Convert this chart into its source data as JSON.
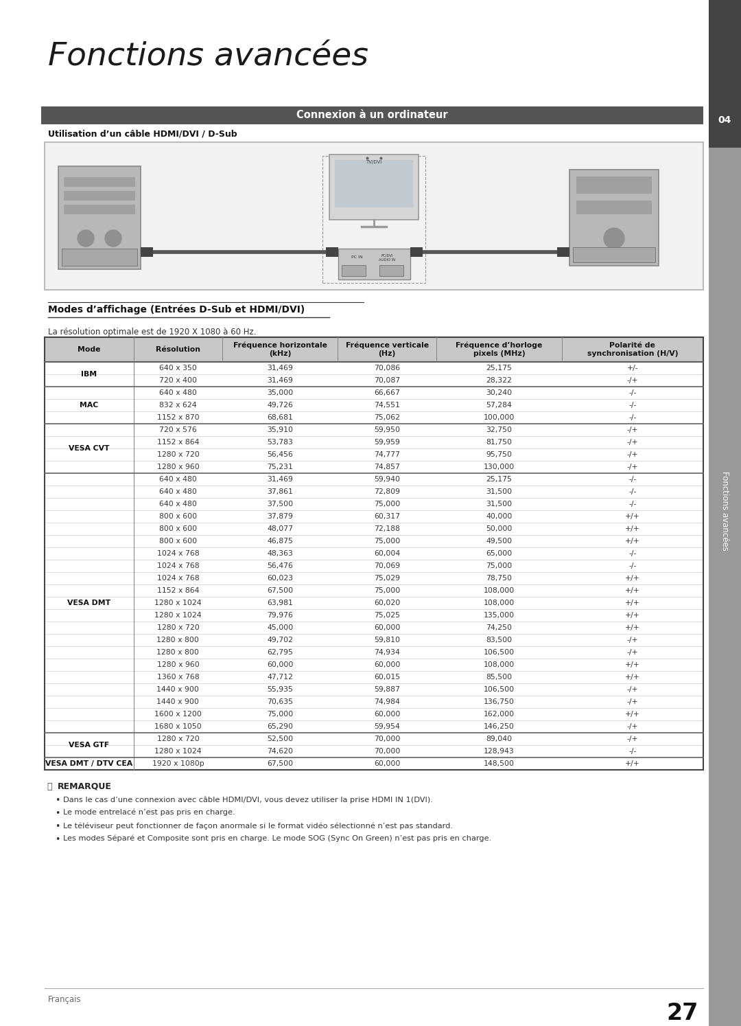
{
  "page_title": "Fonctions avancées",
  "section_header": "Connexion à un ordinateur",
  "subsection_title": "Utilisation d’un câble HDMI/DVI / D-Sub",
  "table_title": "Modes d’affichage (Entrées D-Sub et HDMI/DVI)",
  "table_subtitle": "La résolution optimale est de 1920 X 1080 à 60 Hz.",
  "col_headers": [
    "Mode",
    "Résolution",
    "Fréquence horizontale\n(kHz)",
    "Fréquence verticale\n(Hz)",
    "Fréquence d’horloge\npixels (MHz)",
    "Polarité de\nsynchronisation (H/V)"
  ],
  "table_data": [
    [
      "IBM",
      "640 x 350",
      "31,469",
      "70,086",
      "25,175",
      "+/-"
    ],
    [
      "IBM",
      "720 x 400",
      "31,469",
      "70,087",
      "28,322",
      "-/+"
    ],
    [
      "MAC",
      "640 x 480",
      "35,000",
      "66,667",
      "30,240",
      "-/-"
    ],
    [
      "MAC",
      "832 x 624",
      "49,726",
      "74,551",
      "57,284",
      "-/-"
    ],
    [
      "MAC",
      "1152 x 870",
      "68,681",
      "75,062",
      "100,000",
      "-/-"
    ],
    [
      "VESA CVT",
      "720 x 576",
      "35,910",
      "59,950",
      "32,750",
      "-/+"
    ],
    [
      "VESA CVT",
      "1152 x 864",
      "53,783",
      "59,959",
      "81,750",
      "-/+"
    ],
    [
      "VESA CVT",
      "1280 x 720",
      "56,456",
      "74,777",
      "95,750",
      "-/+"
    ],
    [
      "VESA CVT",
      "1280 x 960",
      "75,231",
      "74,857",
      "130,000",
      "-/+"
    ],
    [
      "VESA DMT",
      "640 x 480",
      "31,469",
      "59,940",
      "25,175",
      "-/-"
    ],
    [
      "VESA DMT",
      "640 x 480",
      "37,861",
      "72,809",
      "31,500",
      "-/-"
    ],
    [
      "VESA DMT",
      "640 x 480",
      "37,500",
      "75,000",
      "31,500",
      "-/-"
    ],
    [
      "VESA DMT",
      "800 x 600",
      "37,879",
      "60,317",
      "40,000",
      "+/+"
    ],
    [
      "VESA DMT",
      "800 x 600",
      "48,077",
      "72,188",
      "50,000",
      "+/+"
    ],
    [
      "VESA DMT",
      "800 x 600",
      "46,875",
      "75,000",
      "49,500",
      "+/+"
    ],
    [
      "VESA DMT",
      "1024 x 768",
      "48,363",
      "60,004",
      "65,000",
      "-/-"
    ],
    [
      "VESA DMT",
      "1024 x 768",
      "56,476",
      "70,069",
      "75,000",
      "-/-"
    ],
    [
      "VESA DMT",
      "1024 x 768",
      "60,023",
      "75,029",
      "78,750",
      "+/+"
    ],
    [
      "VESA DMT",
      "1152 x 864",
      "67,500",
      "75,000",
      "108,000",
      "+/+"
    ],
    [
      "VESA DMT",
      "1280 x 1024",
      "63,981",
      "60,020",
      "108,000",
      "+/+"
    ],
    [
      "VESA DMT",
      "1280 x 1024",
      "79,976",
      "75,025",
      "135,000",
      "+/+"
    ],
    [
      "VESA DMT",
      "1280 x 720",
      "45,000",
      "60,000",
      "74,250",
      "+/+"
    ],
    [
      "VESA DMT",
      "1280 x 800",
      "49,702",
      "59,810",
      "83,500",
      "-/+"
    ],
    [
      "VESA DMT",
      "1280 x 800",
      "62,795",
      "74,934",
      "106,500",
      "-/+"
    ],
    [
      "VESA DMT",
      "1280 x 960",
      "60,000",
      "60,000",
      "108,000",
      "+/+"
    ],
    [
      "VESA DMT",
      "1360 x 768",
      "47,712",
      "60,015",
      "85,500",
      "+/+"
    ],
    [
      "VESA DMT",
      "1440 x 900",
      "55,935",
      "59,887",
      "106,500",
      "-/+"
    ],
    [
      "VESA DMT",
      "1440 x 900",
      "70,635",
      "74,984",
      "136,750",
      "-/+"
    ],
    [
      "VESA DMT",
      "1600 x 1200",
      "75,000",
      "60,000",
      "162,000",
      "+/+"
    ],
    [
      "VESA DMT",
      "1680 x 1050",
      "65,290",
      "59,954",
      "146,250",
      "-/+"
    ],
    [
      "VESA GTF",
      "1280 x 720",
      "52,500",
      "70,000",
      "89,040",
      "-/+"
    ],
    [
      "VESA GTF",
      "1280 x 1024",
      "74,620",
      "70,000",
      "128,943",
      "-/-"
    ],
    [
      "VESA DMT / DTV CEA",
      "1920 x 1080p",
      "67,500",
      "60,000",
      "148,500",
      "+/+"
    ]
  ],
  "group_rows": {
    "IBM": [
      0,
      1
    ],
    "MAC": [
      2,
      3,
      4
    ],
    "VESA CVT": [
      5,
      6,
      7,
      8
    ],
    "VESA DMT": [
      9,
      10,
      11,
      12,
      13,
      14,
      15,
      16,
      17,
      18,
      19,
      20,
      21,
      22,
      23,
      24,
      25,
      26,
      27,
      28,
      29
    ],
    "VESA GTF": [
      30,
      31
    ],
    "VESA DMT / DTV CEA": [
      32
    ]
  },
  "notes": [
    "Dans le cas d’une connexion avec câble HDMI/DVI, vous devez utiliser la prise HDMI IN 1(DVI).",
    "Le mode entrelacé n’est pas pris en charge.",
    "Le téléviseur peut fonctionner de façon anormale si le format vidéo sélectionné n’est pas standard.",
    "Les modes Séparé et Composite sont pris en charge. Le mode SOG (Sync On Green) n’est pas pris en charge."
  ],
  "notes_bold": [
    [
      "HDMI IN 1(DVI)"
    ],
    [],
    [],
    []
  ],
  "remark_label": "REMARQUE",
  "page_number": "27",
  "page_label": "Français",
  "sidebar_text": "Fonctions avancées",
  "sidebar_number": "04",
  "bg_color": "#ffffff",
  "header_bg": "#555555",
  "header_text_color": "#ffffff",
  "table_header_bg": "#c8c8c8",
  "sidebar_bg": "#999999",
  "sidebar_dark": "#444444"
}
